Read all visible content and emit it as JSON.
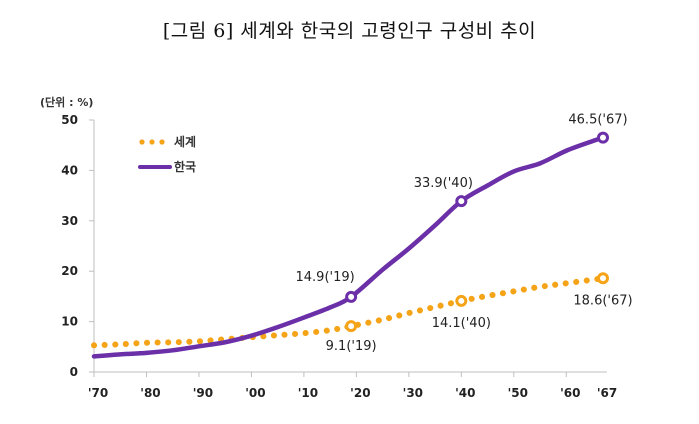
{
  "title": "[그림 6] 세계와 한국의 고령인구 구성비 추이",
  "chart_data": {
    "type": "line",
    "title": "[그림 6] 세계와 한국의 고령인구 구성비 추이",
    "unit_label": "(단위 : %)",
    "xlabel": "",
    "ylabel": "",
    "ylim": [
      0,
      50
    ],
    "yticks": [
      0,
      10,
      20,
      30,
      40,
      50
    ],
    "xlim": [
      1970,
      2067
    ],
    "xticks": [
      1970,
      1980,
      1990,
      2000,
      2010,
      2020,
      2030,
      2040,
      2050,
      2060,
      2067
    ],
    "xtick_labels": [
      "'70",
      "'80",
      "'90",
      "'00",
      "'10",
      "'20",
      "'30",
      "'40",
      "'50",
      "'60",
      "'67"
    ],
    "grid": false,
    "legend": {
      "position": "top-left"
    },
    "series": [
      {
        "name": "세계",
        "color": "#F5A317",
        "style": "dotted",
        "x": [
          1970,
          1975,
          1980,
          1985,
          1990,
          1995,
          2000,
          2005,
          2010,
          2015,
          2019,
          2025,
          2030,
          2035,
          2040,
          2045,
          2050,
          2055,
          2060,
          2067
        ],
        "y": [
          5.3,
          5.5,
          5.8,
          5.9,
          6.1,
          6.5,
          6.9,
          7.3,
          7.7,
          8.3,
          9.1,
          10.4,
          11.7,
          12.9,
          14.1,
          15.1,
          16.0,
          16.9,
          17.6,
          18.6
        ],
        "highlights": [
          {
            "x": 2019,
            "y": 9.1,
            "label": "9.1('19)"
          },
          {
            "x": 2040,
            "y": 14.1,
            "label": "14.1('40)"
          },
          {
            "x": 2067,
            "y": 18.6,
            "label": "18.6('67)"
          }
        ]
      },
      {
        "name": "한국",
        "color": "#6B2FA8",
        "style": "solid",
        "x": [
          1970,
          1975,
          1980,
          1985,
          1990,
          1995,
          2000,
          2005,
          2010,
          2015,
          2019,
          2025,
          2030,
          2035,
          2040,
          2045,
          2050,
          2055,
          2060,
          2065,
          2067
        ],
        "y": [
          3.1,
          3.5,
          3.8,
          4.3,
          5.1,
          5.9,
          7.2,
          8.9,
          10.8,
          12.8,
          14.9,
          20.3,
          24.5,
          29.1,
          33.9,
          37.0,
          39.8,
          41.4,
          43.9,
          45.8,
          46.5
        ],
        "highlights": [
          {
            "x": 2019,
            "y": 14.9,
            "label": "14.9('19)"
          },
          {
            "x": 2040,
            "y": 33.9,
            "label": "33.9('40)"
          },
          {
            "x": 2067,
            "y": 46.5,
            "label": "46.5('67)"
          }
        ]
      }
    ]
  }
}
